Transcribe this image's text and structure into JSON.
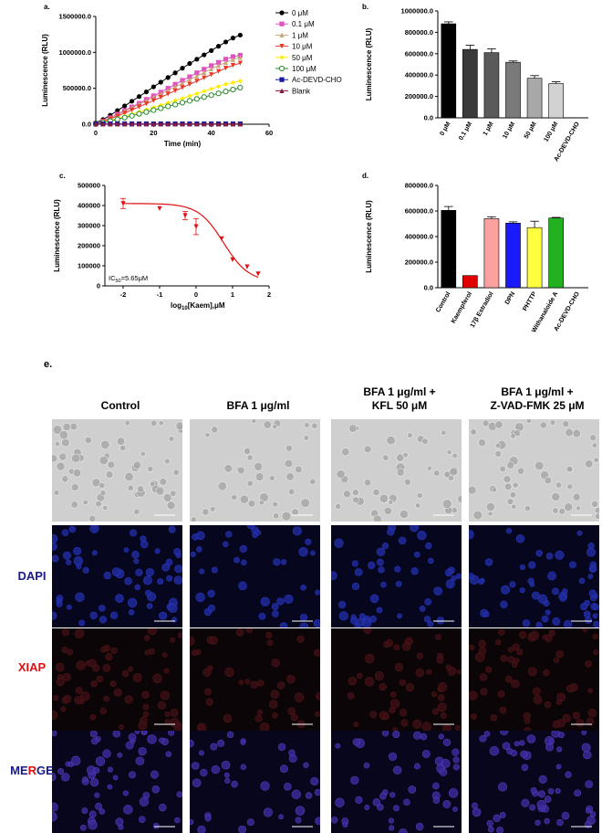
{
  "panel_letters": {
    "a": "a.",
    "b": "b.",
    "c": "c.",
    "d": "d.",
    "e": "e."
  },
  "chart_data": [
    {
      "id": "a",
      "type": "line",
      "xlabel": "Time (min)",
      "ylabel": "Luminescence (RLU)",
      "xlim": [
        0,
        60
      ],
      "ylim": [
        0,
        1500000
      ],
      "xticks": [
        "0",
        "20",
        "40",
        "60"
      ],
      "yticks": [
        "0.0",
        "500000.0",
        "1000000.0",
        "1500000.0"
      ],
      "x": [
        0,
        2.5,
        5,
        7.5,
        10,
        12.5,
        15,
        17.5,
        20,
        22.5,
        25,
        27.5,
        30,
        32.5,
        35,
        37.5,
        40,
        42.5,
        45,
        47.5,
        50
      ],
      "legend_position": "right",
      "series": [
        {
          "name": "0 μM",
          "color": "#000000",
          "marker": "circle-filled",
          "values": [
            20000,
            65000,
            125000,
            190000,
            255000,
            320000,
            385000,
            450000,
            520000,
            585000,
            650000,
            715000,
            780000,
            845000,
            905000,
            965000,
            1025000,
            1085000,
            1145000,
            1200000,
            1240000
          ]
        },
        {
          "name": "0.1 μM",
          "color": "#e052c0",
          "marker": "square-filled",
          "values": [
            12000,
            45000,
            90000,
            140000,
            190000,
            240000,
            290000,
            345000,
            395000,
            445000,
            500000,
            555000,
            610000,
            660000,
            715000,
            765000,
            815000,
            860000,
            905000,
            940000,
            960000
          ]
        },
        {
          "name": "1 μM",
          "color": "#c8a878",
          "marker": "triangle-filled",
          "values": [
            12000,
            42000,
            85000,
            130000,
            180000,
            228000,
            276000,
            324000,
            372000,
            420000,
            470000,
            520000,
            570000,
            620000,
            670000,
            720000,
            770000,
            815000,
            860000,
            900000,
            930000
          ]
        },
        {
          "name": "10 μM",
          "color": "#e8392c",
          "marker": "triangle-down",
          "values": [
            10000,
            38000,
            75000,
            115000,
            155000,
            198000,
            242000,
            285000,
            330000,
            375000,
            420000,
            465000,
            510000,
            555000,
            600000,
            645000,
            690000,
            735000,
            780000,
            820000,
            850000
          ]
        },
        {
          "name": "50 μM",
          "color": "#ffee00",
          "marker": "diamond-filled",
          "values": [
            8000,
            26000,
            52000,
            80000,
            110000,
            140000,
            170000,
            200000,
            232000,
            264000,
            296000,
            328000,
            360000,
            393000,
            426000,
            459000,
            492000,
            525000,
            557000,
            580000,
            600000
          ]
        },
        {
          "name": "100 μM",
          "color": "#2a8a2a",
          "marker": "circle-open",
          "values": [
            6000,
            22000,
            44000,
            68000,
            92000,
            118000,
            144000,
            170000,
            196000,
            222000,
            248000,
            274000,
            300000,
            326000,
            352000,
            378000,
            404000,
            430000,
            456000,
            482000,
            510000
          ]
        },
        {
          "name": "Ac-DEVD-CHO",
          "color": "#1a1aa0",
          "marker": "square-filled",
          "values": [
            5000,
            5000,
            5000,
            5000,
            5000,
            5000,
            5000,
            5000,
            5000,
            5000,
            5000,
            5000,
            5000,
            5000,
            5000,
            5000,
            5000,
            5000,
            5000,
            5000,
            5000
          ]
        },
        {
          "name": "Blank",
          "color": "#8a1a3a",
          "marker": "triangle-filled",
          "values": [
            3000,
            3000,
            3000,
            3000,
            3000,
            3000,
            3000,
            3000,
            3000,
            3000,
            3000,
            3000,
            3000,
            3000,
            3000,
            3000,
            3000,
            3000,
            3000,
            3000,
            3000
          ]
        }
      ]
    },
    {
      "id": "b",
      "type": "bar",
      "ylabel": "Luminescence (RLU)",
      "ylim": [
        0,
        1000000
      ],
      "yticks": [
        "0.0",
        "200000.0",
        "400000.0",
        "600000.0",
        "800000.0",
        "1000000.0"
      ],
      "categories": [
        "0 μM",
        "0.1 μM",
        "1 μM",
        "10 μM",
        "50 μM",
        "100 μM",
        "Ac-DEVD-CHO"
      ],
      "values": [
        880000,
        640000,
        610000,
        520000,
        370000,
        320000,
        0
      ],
      "errors": [
        18000,
        40000,
        35000,
        12000,
        25000,
        18000,
        0
      ],
      "colors": [
        "#000000",
        "#3a3a3a",
        "#5a5a5a",
        "#7a7a7a",
        "#a8a8a8",
        "#d2d2d2",
        "#ffffff"
      ]
    },
    {
      "id": "c",
      "type": "scatter",
      "xlabel_main": "log",
      "xlabel_sub": "10",
      "xlabel_rest": "[Kaem],μM",
      "ylabel": "Luminescence (RLU)",
      "xlim": [
        -2.5,
        2
      ],
      "ylim": [
        0,
        500000
      ],
      "xticks": [
        "-2",
        "-1",
        "0",
        "1",
        "2"
      ],
      "yticks": [
        "0",
        "100000",
        "200000",
        "300000",
        "400000",
        "500000"
      ],
      "color": "#e01010",
      "points": [
        {
          "x": -2,
          "y": 410000,
          "err": 25000
        },
        {
          "x": -1,
          "y": 385000,
          "err": 0
        },
        {
          "x": -0.3,
          "y": 350000,
          "err": 20000
        },
        {
          "x": 0,
          "y": 295000,
          "err": 40000
        },
        {
          "x": 0.7,
          "y": 235000,
          "err": 0
        },
        {
          "x": 1,
          "y": 130000,
          "err": 0
        },
        {
          "x": 1.4,
          "y": 95000,
          "err": 0
        },
        {
          "x": 1.7,
          "y": 60000,
          "err": 0
        }
      ],
      "fit": {
        "top": 410000,
        "bottom": 20000,
        "log_ic50": 0.752,
        "hill": 0.9
      },
      "annotation_main": "IC",
      "annotation_sub": "50",
      "annotation_rest": "=5.65μM"
    },
    {
      "id": "d",
      "type": "bar",
      "ylabel": "Luminescence (RLU)",
      "ylim": [
        0,
        800000
      ],
      "yticks": [
        "0.0",
        "200000.0",
        "400000.0",
        "600000.0",
        "800000.0"
      ],
      "categories": [
        "Control",
        "Kaempferol",
        "17β Estradiol",
        "DPN",
        "PHTTP",
        "Withanaloide A",
        "Ac-DEVD-CHO"
      ],
      "values": [
        605000,
        95000,
        540000,
        505000,
        470000,
        545000,
        0
      ],
      "errors": [
        30000,
        0,
        15000,
        10000,
        50000,
        5000,
        0
      ],
      "colors": [
        "#000000",
        "#e00000",
        "#ffa0a0",
        "#1a1aff",
        "#ffff40",
        "#20b020",
        "#ffffff"
      ]
    }
  ],
  "micrograph": {
    "columns": [
      {
        "line1": "Control",
        "line2": ""
      },
      {
        "line1": "BFA 1 μg/ml",
        "line2": ""
      },
      {
        "line1": "BFA 1 μg/ml +",
        "line2": "KFL 50 μM"
      },
      {
        "line1": "BFA 1 μg/ml +",
        "line2": "Z-VAD-FMK 25 μM"
      }
    ],
    "rows": [
      {
        "label": "",
        "kind": "brightfield"
      },
      {
        "label": "DAPI",
        "kind": "dapi",
        "label_color": "#1a1a8a"
      },
      {
        "label": "XIAP",
        "kind": "xiap",
        "label_color": "#e01010"
      },
      {
        "label": "MERGE",
        "kind": "merge",
        "label_parts": [
          {
            "t": "ME",
            "c": "#1a1a8a"
          },
          {
            "t": "R",
            "c": "#e01010"
          },
          {
            "t": "GE",
            "c": "#1a1a8a"
          }
        ]
      }
    ]
  }
}
